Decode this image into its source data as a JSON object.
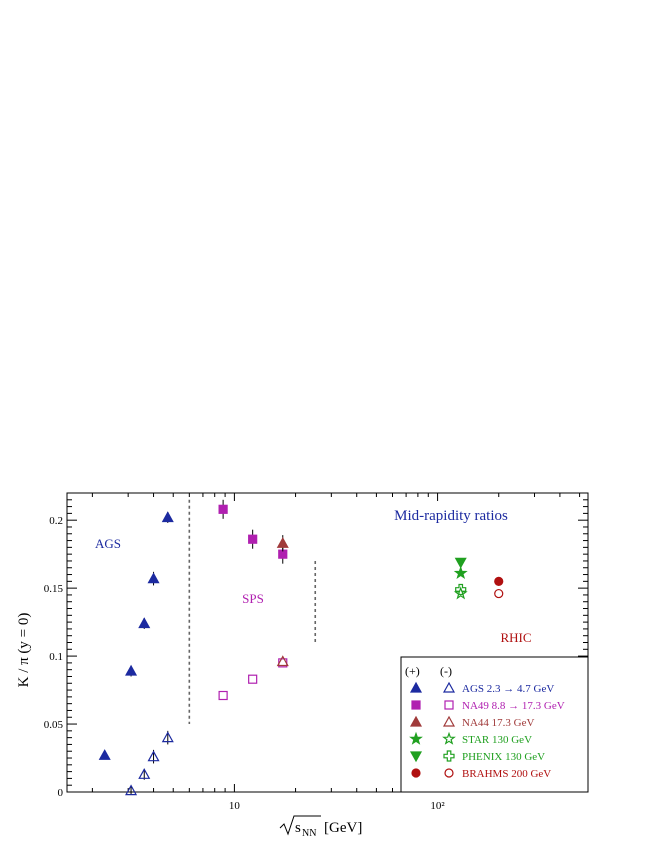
{
  "chart_data": {
    "type": "scatter",
    "title": "Mid-rapidity ratios",
    "xlabel_radicand": "s",
    "xlabel_subscript": "NN",
    "xlabel_unit": "[GeV]",
    "ylabel": "K / π (y = 0)",
    "x_scale": "log",
    "xlim": [
      1.5,
      550
    ],
    "ylim": [
      0,
      0.22
    ],
    "x_tick_labels": [
      {
        "value": 10,
        "label": "10"
      },
      {
        "value": 100,
        "label": "10²"
      }
    ],
    "y_tick_labels": [
      {
        "value": 0,
        "label": "0"
      },
      {
        "value": 0.05,
        "label": "0.05"
      },
      {
        "value": 0.1,
        "label": "0.1"
      },
      {
        "value": 0.15,
        "label": "0.15"
      },
      {
        "value": 0.2,
        "label": "0.2"
      }
    ],
    "region_labels": [
      {
        "text": "AGS",
        "color": "#1c2aa0"
      },
      {
        "text": "SPS",
        "color": "#b020b0"
      },
      {
        "text": "RHIC",
        "color": "#b01010"
      }
    ],
    "dividers": [
      {
        "x": 6.0,
        "y_from": 0.05,
        "y_to": 0.215
      },
      {
        "x": 25.0,
        "y_from": 0.11,
        "y_to": 0.17
      }
    ],
    "legend": {
      "position": "bottom-right",
      "header_plus": "(+)",
      "header_minus": "(-)",
      "entries": [
        {
          "label": "AGS 2.3 → 4.7 GeV",
          "color": "#1c2aa0",
          "plus_marker": "triangle-up-filled",
          "minus_marker": "triangle-up-open"
        },
        {
          "label": "NA49 8.8 → 17.3 GeV",
          "color": "#b020b0",
          "plus_marker": "square-filled",
          "minus_marker": "square-open"
        },
        {
          "label": "NA44 17.3 GeV",
          "color": "#a03a3a",
          "plus_marker": "triangle-up-filled",
          "minus_marker": "triangle-up-open"
        },
        {
          "label": "STAR   130 GeV",
          "color": "#20a020",
          "plus_marker": "star-filled",
          "minus_marker": "star-open"
        },
        {
          "label": "PHENIX 130 GeV",
          "color": "#20a020",
          "plus_marker": "triangle-down-filled",
          "minus_marker": "cross-open"
        },
        {
          "label": "BRAHMS 200 GeV",
          "color": "#b01010",
          "plus_marker": "circle-filled",
          "minus_marker": "circle-open"
        }
      ]
    },
    "series": [
      {
        "name": "AGS 2.3 → 4.7 GeV",
        "charge": "+",
        "marker": "triangle-up-filled",
        "color": "#1c2aa0",
        "x": [
          2.3,
          3.1,
          3.6,
          4.0,
          4.7
        ],
        "y": [
          0.027,
          0.089,
          0.124,
          0.157,
          0.202
        ],
        "err": [
          0.0,
          0.004,
          0.004,
          0.005,
          0.004
        ]
      },
      {
        "name": "AGS 2.3 → 4.7 GeV",
        "charge": "-",
        "marker": "triangle-up-open",
        "color": "#1c2aa0",
        "x": [
          3.1,
          3.6,
          4.0,
          4.7
        ],
        "y": [
          0.001,
          0.013,
          0.026,
          0.04
        ],
        "err": [
          0.003,
          0.004,
          0.005,
          0.005
        ]
      },
      {
        "name": "NA49 8.8 → 17.3 GeV",
        "charge": "+",
        "marker": "square-filled",
        "color": "#b020b0",
        "x": [
          8.8,
          12.3,
          17.3
        ],
        "y": [
          0.208,
          0.186,
          0.175
        ],
        "err": [
          0.007,
          0.007,
          0.007
        ]
      },
      {
        "name": "NA49 8.8 → 17.3 GeV",
        "charge": "-",
        "marker": "square-open",
        "color": "#b020b0",
        "x": [
          8.8,
          12.3,
          17.3
        ],
        "y": [
          0.071,
          0.083,
          0.095
        ],
        "err": [
          0.0,
          0.0,
          0.0
        ]
      },
      {
        "name": "NA44 17.3 GeV",
        "charge": "+",
        "marker": "triangle-up-filled",
        "color": "#a03a3a",
        "x": [
          17.3
        ],
        "y": [
          0.183
        ],
        "err": [
          0.006
        ]
      },
      {
        "name": "NA44 17.3 GeV",
        "charge": "-",
        "marker": "triangle-up-open",
        "color": "#a03a3a",
        "x": [
          17.3
        ],
        "y": [
          0.096
        ],
        "err": [
          0.0
        ]
      },
      {
        "name": "STAR   130 GeV",
        "charge": "+",
        "marker": "star-filled",
        "color": "#20a020",
        "x": [
          130
        ],
        "y": [
          0.161
        ],
        "err": [
          0.0
        ]
      },
      {
        "name": "STAR   130 GeV",
        "charge": "-",
        "marker": "star-open",
        "color": "#20a020",
        "x": [
          130
        ],
        "y": [
          0.146
        ],
        "err": [
          0.0
        ]
      },
      {
        "name": "PHENIX 130 GeV",
        "charge": "+",
        "marker": "triangle-down-filled",
        "color": "#20a020",
        "x": [
          130
        ],
        "y": [
          0.169
        ],
        "err": [
          0.0
        ]
      },
      {
        "name": "PHENIX 130 GeV",
        "charge": "-",
        "marker": "cross-open",
        "color": "#20a020",
        "x": [
          130
        ],
        "y": [
          0.149
        ],
        "err": [
          0.0
        ]
      },
      {
        "name": "BRAHMS 200 GeV",
        "charge": "+",
        "marker": "circle-filled",
        "color": "#b01010",
        "x": [
          200
        ],
        "y": [
          0.155
        ],
        "err": [
          0.0
        ]
      },
      {
        "name": "BRAHMS 200 GeV",
        "charge": "-",
        "marker": "circle-open",
        "color": "#b01010",
        "x": [
          200
        ],
        "y": [
          0.146
        ],
        "err": [
          0.0
        ]
      }
    ]
  }
}
